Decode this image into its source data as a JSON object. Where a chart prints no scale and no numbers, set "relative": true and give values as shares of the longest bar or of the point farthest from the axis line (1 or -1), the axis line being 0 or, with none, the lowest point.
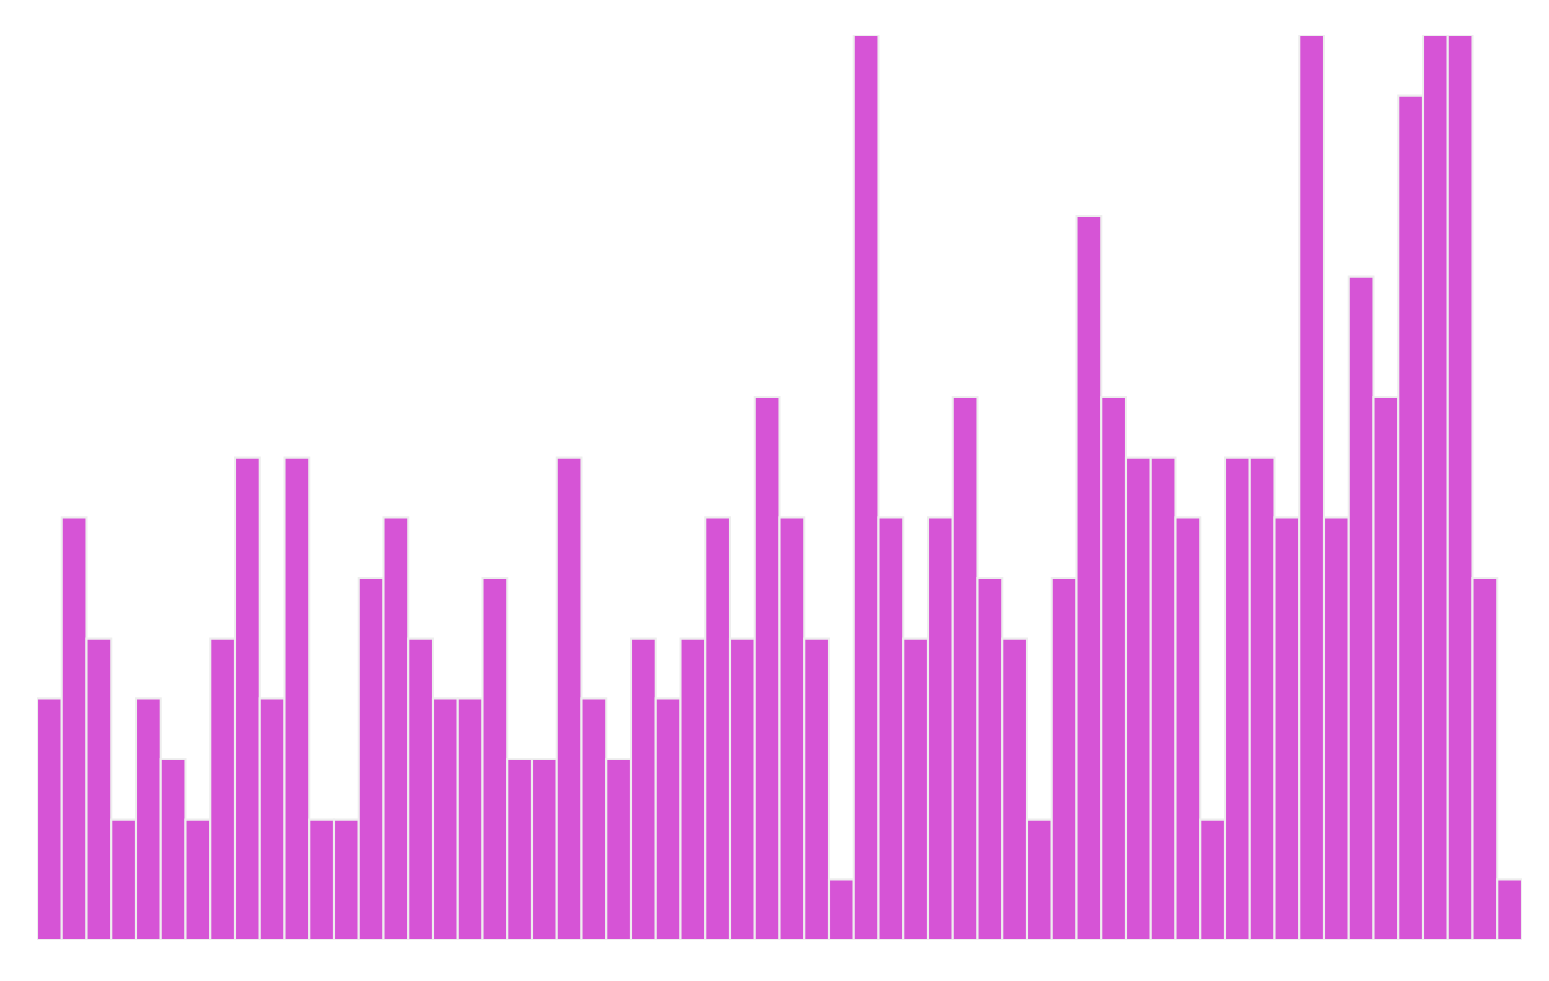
{
  "chart_data": {
    "type": "bar",
    "relative": true,
    "color": "#d654d6",
    "categories": [
      null,
      null,
      null,
      null,
      null,
      null,
      null,
      null,
      null,
      null,
      null,
      null,
      null,
      null,
      null,
      null,
      null,
      null,
      null,
      null,
      null,
      null,
      null,
      null,
      null,
      null,
      null,
      null,
      null,
      null,
      null,
      null,
      null,
      null,
      null,
      null,
      null,
      null,
      null,
      null,
      null,
      null,
      null,
      null,
      null,
      null,
      null,
      null,
      null,
      null,
      null,
      null,
      null,
      null,
      null,
      null,
      null,
      null,
      null,
      null
    ],
    "values": [
      0.267,
      0.467,
      0.333,
      0.133,
      0.267,
      0.2,
      0.133,
      0.333,
      0.533,
      0.267,
      0.533,
      0.133,
      0.133,
      0.4,
      0.467,
      0.333,
      0.267,
      0.267,
      0.4,
      0.2,
      0.2,
      0.533,
      0.267,
      0.2,
      0.333,
      0.267,
      0.333,
      0.467,
      0.333,
      0.6,
      0.467,
      0.333,
      0.067,
      1,
      0.467,
      0.333,
      0.467,
      0.6,
      0.4,
      0.333,
      0.133,
      0.4,
      0.8,
      0.6,
      0.533,
      0.533,
      0.467,
      0.133,
      0.533,
      0.533,
      0.467,
      1,
      0.467,
      0.733,
      0.6,
      0.933,
      1,
      1,
      0.4,
      0.067
    ],
    "grid": false,
    "legend": false
  }
}
